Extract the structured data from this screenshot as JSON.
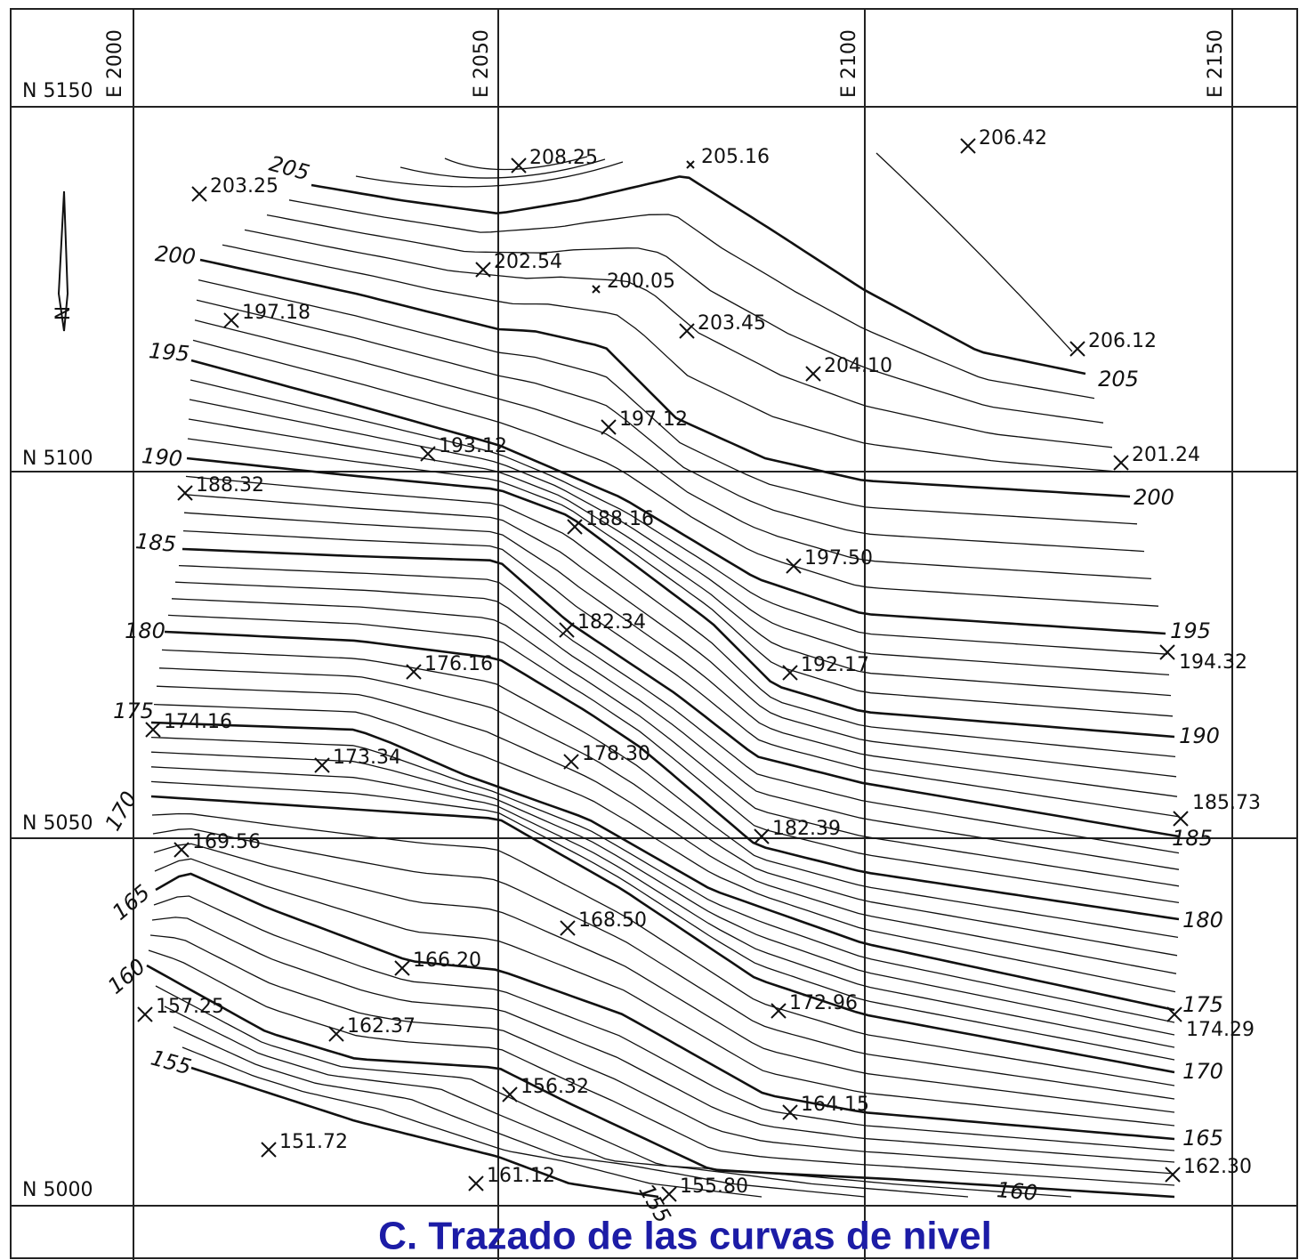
{
  "map": {
    "eastings": [
      "E 2000",
      "E 2050",
      "E 2100",
      "E 2150"
    ],
    "northings": [
      "N 5150",
      "N 5100",
      "N 5050",
      "N 5000"
    ],
    "north_label": "N",
    "spot_heights": [
      "203.25",
      "208.25",
      "205.16",
      "206.42",
      "202.54",
      "200.05",
      "197.18",
      "203.45",
      "206.12",
      "204.10",
      "197.12",
      "193.12",
      "201.24",
      "188.32",
      "188.16",
      "197.50",
      "182.34",
      "176.16",
      "192.17",
      "194.32",
      "174.16",
      "173.34",
      "178.30",
      "185.73",
      "182.39",
      "169.56",
      "168.50",
      "166.20",
      "157.25",
      "172.96",
      "174.29",
      "162.37",
      "156.32",
      "164.15",
      "151.72",
      "161.12",
      "155.80",
      "162.30"
    ],
    "contour_labels": [
      "205",
      "200",
      "195",
      "190",
      "185",
      "180",
      "175",
      "170",
      "165",
      "160",
      "155",
      "155",
      "205",
      "200",
      "195",
      "190",
      "185",
      "180",
      "175",
      "170",
      "165",
      "160"
    ],
    "caption": "C.  Trazado de las curvas de nivel"
  }
}
